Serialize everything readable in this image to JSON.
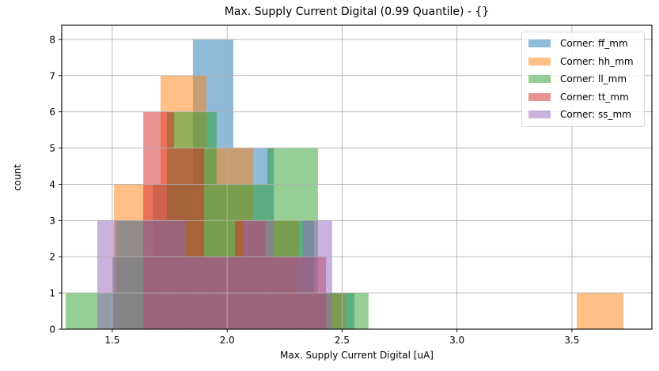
{
  "chart_data": {
    "type": "bar",
    "subtype": "overlapping-histogram",
    "title": "Max. Supply Current Digital (0.99 Quantile) - {}",
    "xlabel": "Max. Supply Current Digital [uA]",
    "ylabel": "count",
    "xlim": [
      1.28,
      3.848
    ],
    "ylim": [
      0,
      8.39
    ],
    "xticks": [
      1.5,
      2.0,
      2.5,
      3.0,
      3.5
    ],
    "xtick_labels": [
      "1.5",
      "2.0",
      "2.5",
      "3.0",
      "3.5"
    ],
    "yticks": [
      0,
      1,
      2,
      3,
      4,
      5,
      6,
      7,
      8
    ],
    "ytick_labels": [
      "0",
      "1",
      "2",
      "3",
      "4",
      "5",
      "6",
      "7",
      "8"
    ],
    "grid": true,
    "legend_position": "upper right",
    "alpha": 0.5,
    "series": [
      {
        "name": "Corner: ff_mm",
        "color": "#1f77b4",
        "bin_edges": [
          1.5,
          1.676,
          1.851,
          2.027,
          2.203,
          2.378,
          2.554
        ],
        "values": [
          2,
          4,
          8,
          5,
          3,
          1
        ]
      },
      {
        "name": "Corner: hh_mm",
        "color": "#ff7f0e",
        "bin_edges": [
          1.507,
          1.71,
          1.91,
          2.113,
          2.312,
          2.514,
          2.716,
          2.917,
          3.119,
          3.32,
          3.521,
          3.724
        ],
        "values": [
          4,
          7,
          5,
          3,
          1,
          0,
          0,
          0,
          0,
          0,
          1
        ]
      },
      {
        "name": "Corner: ll_mm",
        "color": "#2ca02c",
        "bin_edges": [
          1.297,
          1.517,
          1.738,
          1.954,
          2.175,
          2.395,
          2.615
        ],
        "values": [
          1,
          3,
          6,
          4,
          5,
          1
        ]
      },
      {
        "name": "Corner: tt_mm",
        "color": "#d62728",
        "bin_edges": [
          1.635,
          1.769,
          1.9,
          2.034,
          2.165,
          2.299,
          2.43
        ],
        "values": [
          6,
          5,
          2,
          3,
          2,
          2
        ]
      },
      {
        "name": "Corner: ss_mm",
        "color": "#9467bd",
        "bin_edges": [
          1.435,
          1.562,
          1.69,
          1.817,
          1.945,
          2.072,
          2.203,
          2.33,
          2.457
        ],
        "values": [
          3,
          3,
          3,
          2,
          2,
          3,
          2,
          3
        ]
      }
    ]
  },
  "title": "Max. Supply Current Digital (0.99 Quantile) - {}",
  "xlabel": "Max. Supply Current Digital [uA]",
  "ylabel": "count",
  "legend": [
    {
      "label": "Corner: ff_mm",
      "color": "#1f77b4"
    },
    {
      "label": "Corner: hh_mm",
      "color": "#ff7f0e"
    },
    {
      "label": "Corner: ll_mm",
      "color": "#2ca02c"
    },
    {
      "label": "Corner: tt_mm",
      "color": "#d62728"
    },
    {
      "label": "Corner: ss_mm",
      "color": "#9467bd"
    }
  ]
}
